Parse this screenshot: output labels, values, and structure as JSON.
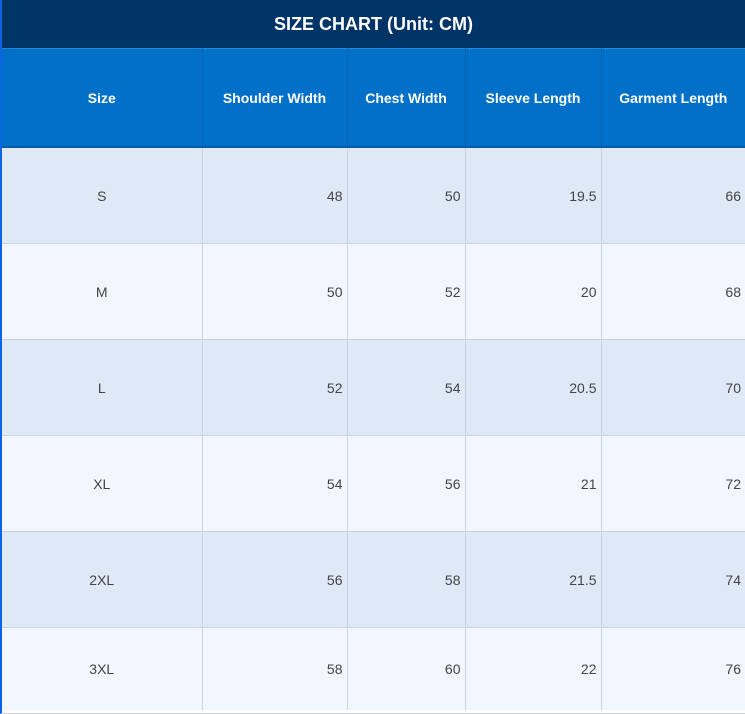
{
  "title": "SIZE CHART (Unit: CM)",
  "columns": [
    "Size",
    "Shoulder Width",
    "Chest Width",
    "Sleeve Length",
    "Garment Length"
  ],
  "rows": [
    [
      "S",
      "48",
      "50",
      "19.5",
      "66"
    ],
    [
      "M",
      "50",
      "52",
      "20",
      "68"
    ],
    [
      "L",
      "52",
      "54",
      "20.5",
      "70"
    ],
    [
      "XL",
      "54",
      "56",
      "21",
      "72"
    ],
    [
      "2XL",
      "56",
      "58",
      "21.5",
      "74"
    ],
    [
      "3XL",
      "58",
      "60",
      "22",
      "76"
    ]
  ],
  "colors": {
    "title_background": "#003366",
    "header_background": "#0070c8",
    "row_odd": "#dfe8f6",
    "row_even": "#f2f6fe"
  }
}
